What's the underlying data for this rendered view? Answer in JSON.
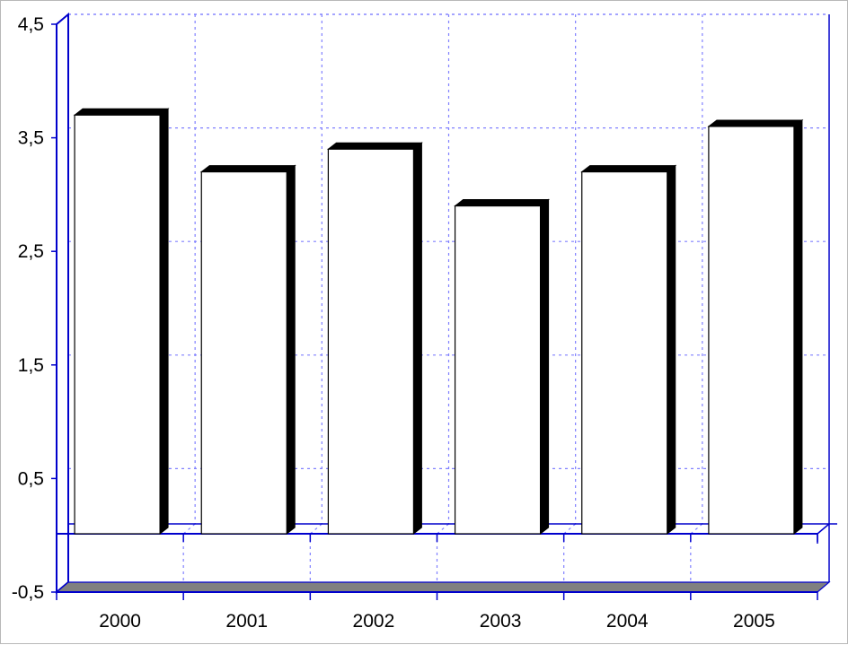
{
  "chart_data": {
    "type": "bar",
    "style": "3d",
    "categories": [
      "2000",
      "2001",
      "2002",
      "2003",
      "2004",
      "2005"
    ],
    "values": [
      3.7,
      3.2,
      3.4,
      2.9,
      3.2,
      3.6
    ],
    "ylim": [
      -0.5,
      4.5
    ],
    "yticks": [
      "4,5",
      "3,5",
      "2,5",
      "1,5",
      "0,5",
      "-0,5"
    ],
    "ytick_values": [
      4.5,
      3.5,
      2.5,
      1.5,
      0.5,
      -0.5
    ],
    "grid": true,
    "legend": "none",
    "colors": {
      "bar_face": "#ffffff",
      "bar_edge": "#000000",
      "bar_depth": "#000000",
      "axis": "#0000cc",
      "grid": "#8080ff",
      "floor": "#808080"
    }
  }
}
